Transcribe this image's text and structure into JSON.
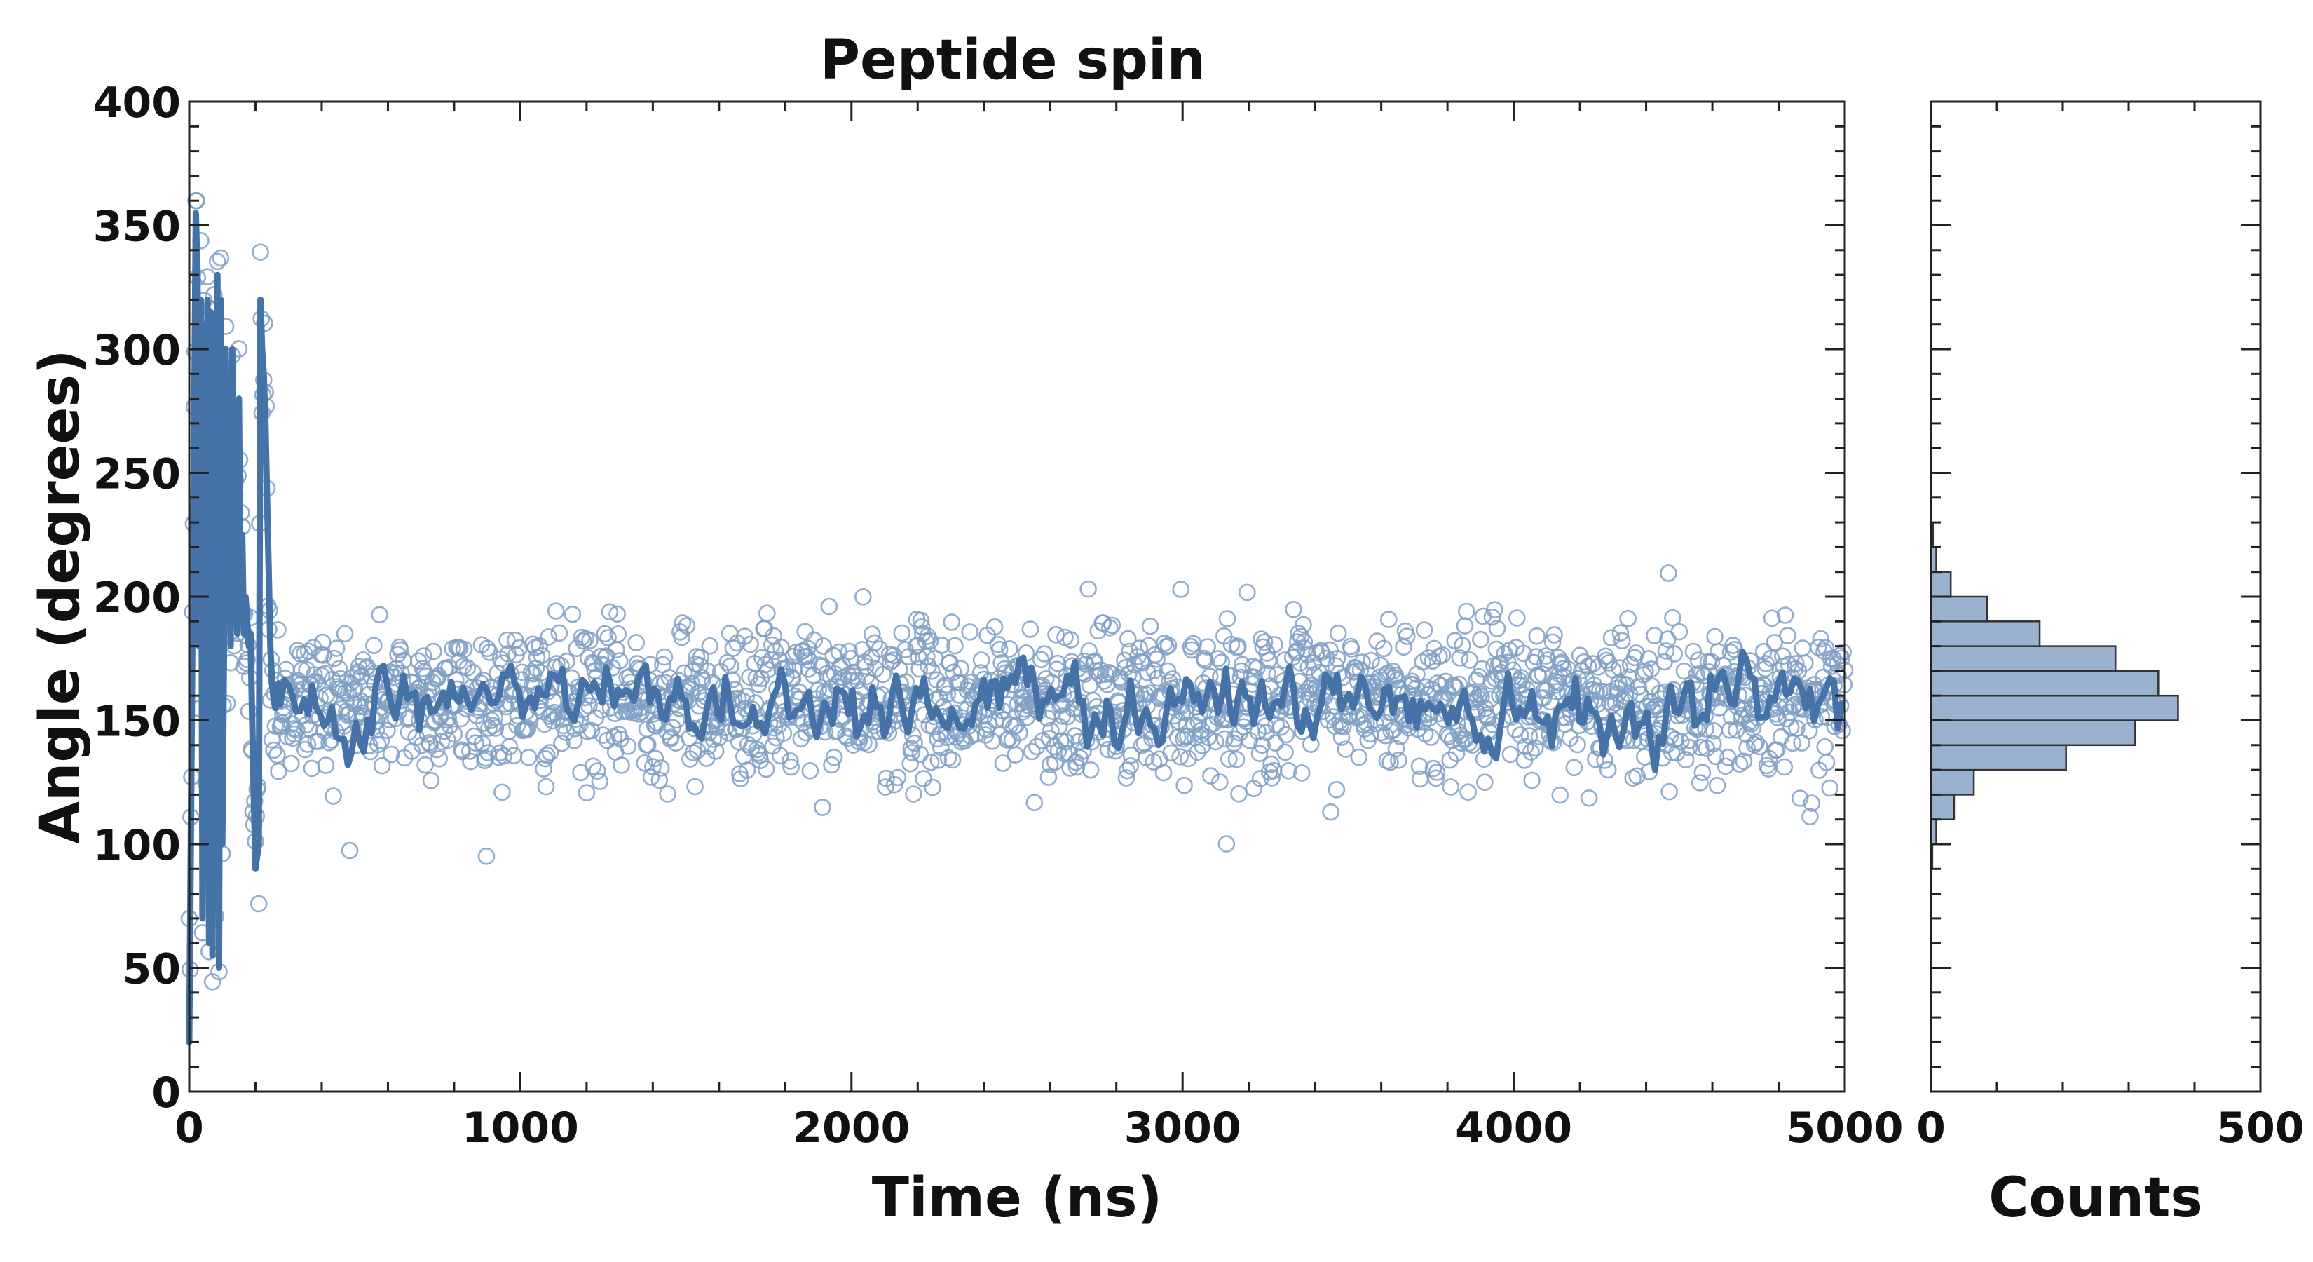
{
  "chart_data": [
    {
      "type": "scatter",
      "title": "Peptide spin",
      "xlabel": "Time (ns)",
      "ylabel": "Angle (degrees)",
      "xlim": [
        0,
        5000
      ],
      "ylim": [
        0,
        400
      ],
      "xticks": [
        0,
        1000,
        2000,
        3000,
        4000,
        5000
      ],
      "yticks": [
        0,
        50,
        100,
        150,
        200,
        250,
        300,
        350,
        400
      ],
      "grid": false,
      "colors": {
        "scatter": "#7f9fc4",
        "line": "#4572a7"
      },
      "series": [
        {
          "kind": "scatter",
          "description_equilibrium_mean": 158,
          "description_equilibrium_spread": 15
        },
        {
          "kind": "line",
          "smoothed": true
        }
      ],
      "early_segment": {
        "x": [
          0,
          10,
          20,
          25,
          30,
          35,
          40,
          45,
          50,
          55,
          60,
          65,
          70,
          75,
          80,
          85,
          90,
          95,
          100,
          105,
          110,
          115,
          120,
          125,
          130,
          135,
          140,
          145,
          150,
          155,
          160,
          165,
          170,
          175,
          180,
          185,
          190,
          195,
          200,
          205,
          210,
          215,
          220,
          225,
          230,
          235,
          240,
          245,
          250,
          255,
          260,
          265,
          270
        ],
        "y": [
          20,
          190,
          355,
          330,
          180,
          320,
          70,
          310,
          130,
          320,
          60,
          315,
          55,
          300,
          80,
          330,
          50,
          320,
          100,
          180,
          300,
          190,
          260,
          180,
          300,
          190,
          240,
          185,
          280,
          195,
          225,
          185,
          200,
          190,
          180,
          185,
          150,
          120,
          90,
          95,
          100,
          320,
          300,
          290,
          270,
          240,
          210,
          180,
          165,
          158,
          155,
          160,
          165
        ]
      }
    },
    {
      "type": "bar",
      "orientation": "horizontal",
      "xlabel": "Counts",
      "xlim": [
        0,
        500
      ],
      "xticks": [
        0,
        500
      ],
      "ylim": [
        0,
        400
      ],
      "color": "#9ab2cf",
      "bins": [
        90,
        100,
        110,
        120,
        130,
        140,
        150,
        160,
        170,
        180,
        190,
        200,
        210,
        220
      ],
      "values": [
        2,
        8,
        35,
        65,
        205,
        310,
        375,
        345,
        280,
        165,
        85,
        30,
        8,
        3
      ]
    }
  ]
}
